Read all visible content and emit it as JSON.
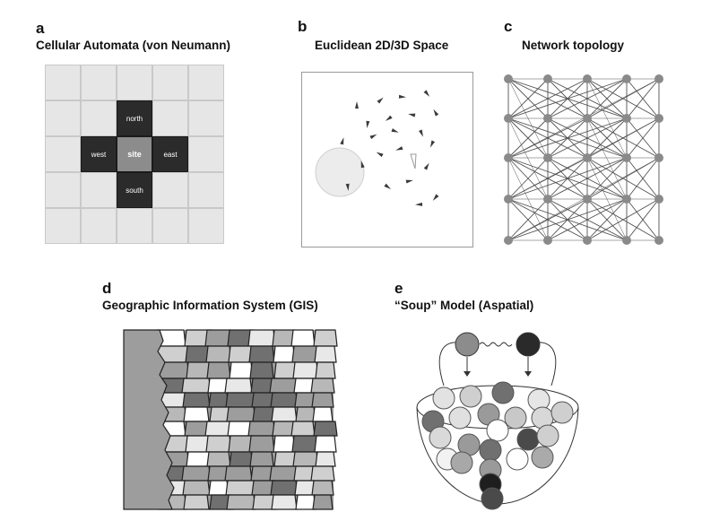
{
  "panels": {
    "a": {
      "letter": "a",
      "title": "Cellular Automata (von Neumann)",
      "labels": {
        "north": "north",
        "west": "west",
        "site": "site",
        "east": "east",
        "south": "south"
      }
    },
    "b": {
      "letter": "b",
      "title": "Euclidean 2D/3D Space"
    },
    "c": {
      "letter": "c",
      "title": "Network topology"
    },
    "d": {
      "letter": "d",
      "title": "Geographic Information System (GIS)"
    },
    "e": {
      "letter": "e",
      "title": "“Soup” Model (Aspatial)"
    }
  },
  "colors": {
    "dark": "#2b2b2b",
    "mid": "#8c8c8c",
    "light": "#e6e6e6",
    "node": "#888888"
  }
}
